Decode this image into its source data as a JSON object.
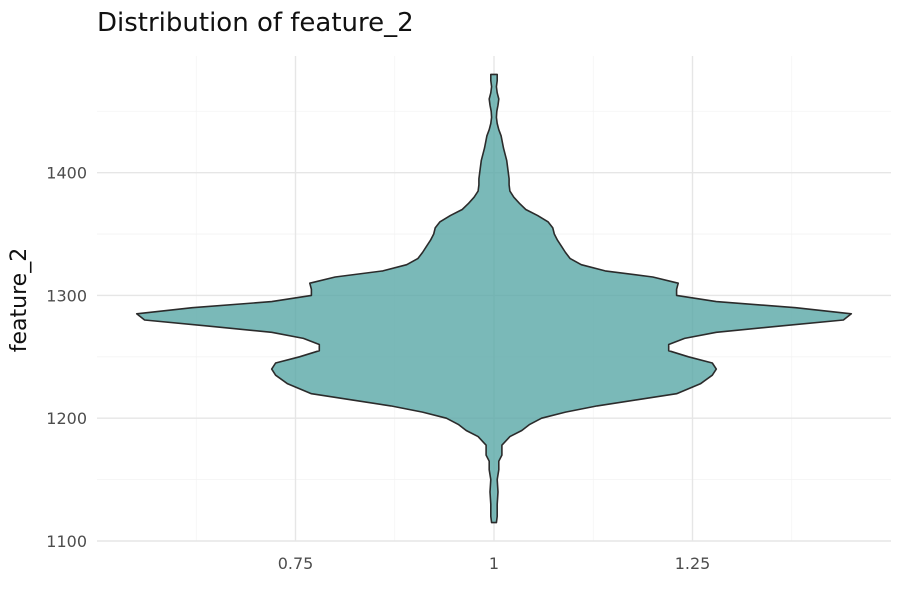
{
  "chart_data": {
    "type": "violin",
    "title": "Distribution of feature_2",
    "xlabel": "",
    "ylabel": "feature_2",
    "x_ticks": [
      {
        "value": 0.75,
        "label": "0.75"
      },
      {
        "value": 1,
        "label": "1"
      },
      {
        "value": 1.25,
        "label": "1.25"
      }
    ],
    "y_ticks": [
      {
        "value": 1100,
        "label": "1100"
      },
      {
        "value": 1200,
        "label": "1200"
      },
      {
        "value": 1300,
        "label": "1300"
      },
      {
        "value": 1400,
        "label": "1400"
      }
    ],
    "xlim": [
      0.5,
      1.5
    ],
    "ylim": [
      1100,
      1495
    ],
    "grid": true,
    "fill_color": "#59a8a6",
    "outline_color": "#2b2b2b",
    "center_x": 1,
    "profile": [
      [
        1115,
        0.003
      ],
      [
        1120,
        0.004
      ],
      [
        1130,
        0.004
      ],
      [
        1140,
        0.005
      ],
      [
        1150,
        0.004
      ],
      [
        1158,
        0.006
      ],
      [
        1165,
        0.006
      ],
      [
        1170,
        0.01
      ],
      [
        1178,
        0.01
      ],
      [
        1185,
        0.02
      ],
      [
        1190,
        0.035
      ],
      [
        1195,
        0.045
      ],
      [
        1200,
        0.06
      ],
      [
        1205,
        0.09
      ],
      [
        1210,
        0.13
      ],
      [
        1215,
        0.18
      ],
      [
        1220,
        0.23
      ],
      [
        1228,
        0.26
      ],
      [
        1235,
        0.275
      ],
      [
        1240,
        0.28
      ],
      [
        1245,
        0.275
      ],
      [
        1250,
        0.245
      ],
      [
        1255,
        0.22
      ],
      [
        1260,
        0.22
      ],
      [
        1265,
        0.24
      ],
      [
        1270,
        0.28
      ],
      [
        1275,
        0.36
      ],
      [
        1280,
        0.44
      ],
      [
        1285,
        0.45
      ],
      [
        1290,
        0.38
      ],
      [
        1295,
        0.28
      ],
      [
        1300,
        0.23
      ],
      [
        1305,
        0.23
      ],
      [
        1310,
        0.232
      ],
      [
        1315,
        0.2
      ],
      [
        1320,
        0.14
      ],
      [
        1325,
        0.11
      ],
      [
        1330,
        0.096
      ],
      [
        1335,
        0.09
      ],
      [
        1340,
        0.085
      ],
      [
        1345,
        0.08
      ],
      [
        1350,
        0.076
      ],
      [
        1355,
        0.074
      ],
      [
        1360,
        0.068
      ],
      [
        1365,
        0.055
      ],
      [
        1370,
        0.04
      ],
      [
        1375,
        0.032
      ],
      [
        1380,
        0.025
      ],
      [
        1385,
        0.02
      ],
      [
        1390,
        0.019
      ],
      [
        1395,
        0.019
      ],
      [
        1400,
        0.018
      ],
      [
        1410,
        0.016
      ],
      [
        1420,
        0.012
      ],
      [
        1430,
        0.009
      ],
      [
        1435,
        0.006
      ],
      [
        1440,
        0.004
      ],
      [
        1445,
        0.003
      ],
      [
        1450,
        0.0035
      ],
      [
        1455,
        0.005
      ],
      [
        1460,
        0.006
      ],
      [
        1465,
        0.004
      ],
      [
        1470,
        0.003
      ],
      [
        1475,
        0.004
      ],
      [
        1480,
        0.004
      ]
    ]
  }
}
